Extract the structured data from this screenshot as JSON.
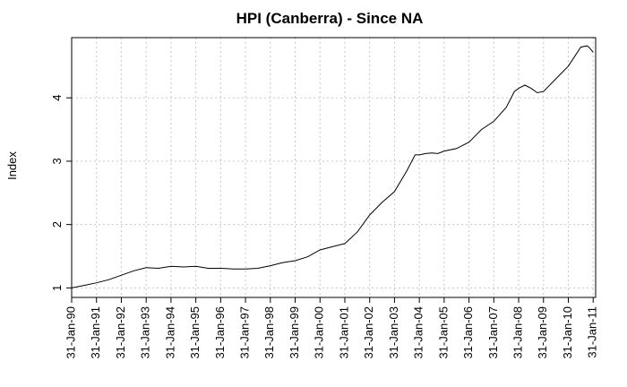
{
  "chart_data": {
    "type": "line",
    "title": "HPI (Canberra) - Since NA",
    "xlabel": "",
    "ylabel": "Index",
    "grid": true,
    "legend": "none",
    "ylim": [
      0.85,
      4.95
    ],
    "xlim": [
      1990.0,
      2011.1
    ],
    "y_ticks": [
      1,
      2,
      3,
      4
    ],
    "y_tick_labels": [
      "1",
      "2",
      "3",
      "4"
    ],
    "x_ticks": [
      1990,
      1991,
      1992,
      1993,
      1994,
      1995,
      1996,
      1997,
      1998,
      1999,
      2000,
      2001,
      2002,
      2003,
      2004,
      2005,
      2006,
      2007,
      2008,
      2009,
      2010,
      2011
    ],
    "x_tick_labels": [
      "31-Jan-90",
      "31-Jan-91",
      "31-Jan-92",
      "31-Jan-93",
      "31-Jan-94",
      "31-Jan-95",
      "31-Jan-96",
      "31-Jan-97",
      "31-Jan-98",
      "31-Jan-99",
      "31-Jan-00",
      "31-Jan-01",
      "31-Jan-02",
      "31-Jan-03",
      "31-Jan-04",
      "31-Jan-05",
      "31-Jan-06",
      "31-Jan-07",
      "31-Jan-08",
      "31-Jan-09",
      "31-Jan-10",
      "31-Jan-11"
    ],
    "series": [
      {
        "x": [
          1990.0,
          1990.5,
          1991.0,
          1991.5,
          1992.0,
          1992.5,
          1993.0,
          1993.5,
          1994.0,
          1994.5,
          1995.0,
          1995.5,
          1996.0,
          1996.5,
          1997.0,
          1997.5,
          1998.0,
          1998.5,
          1999.0,
          1999.5,
          2000.0,
          2000.5,
          2001.0,
          2001.5,
          2002.0,
          2002.5,
          2003.0,
          2003.5,
          2003.83,
          2004.0,
          2004.25,
          2004.5,
          2004.75,
          2005.0,
          2005.5,
          2006.0,
          2006.5,
          2007.0,
          2007.5,
          2007.83,
          2008.0,
          2008.25,
          2008.5,
          2008.75,
          2009.0,
          2009.5,
          2010.0,
          2010.5,
          2010.75,
          2010.83,
          2011.0
        ],
        "values": [
          1.0,
          1.04,
          1.08,
          1.13,
          1.2,
          1.27,
          1.32,
          1.31,
          1.34,
          1.33,
          1.34,
          1.31,
          1.31,
          1.3,
          1.3,
          1.31,
          1.35,
          1.4,
          1.43,
          1.49,
          1.6,
          1.65,
          1.7,
          1.88,
          2.15,
          2.35,
          2.52,
          2.85,
          3.1,
          3.1,
          3.12,
          3.13,
          3.12,
          3.16,
          3.2,
          3.3,
          3.5,
          3.63,
          3.85,
          4.1,
          4.15,
          4.2,
          4.15,
          4.08,
          4.1,
          4.3,
          4.5,
          4.8,
          4.82,
          4.8,
          4.72
        ]
      }
    ]
  }
}
